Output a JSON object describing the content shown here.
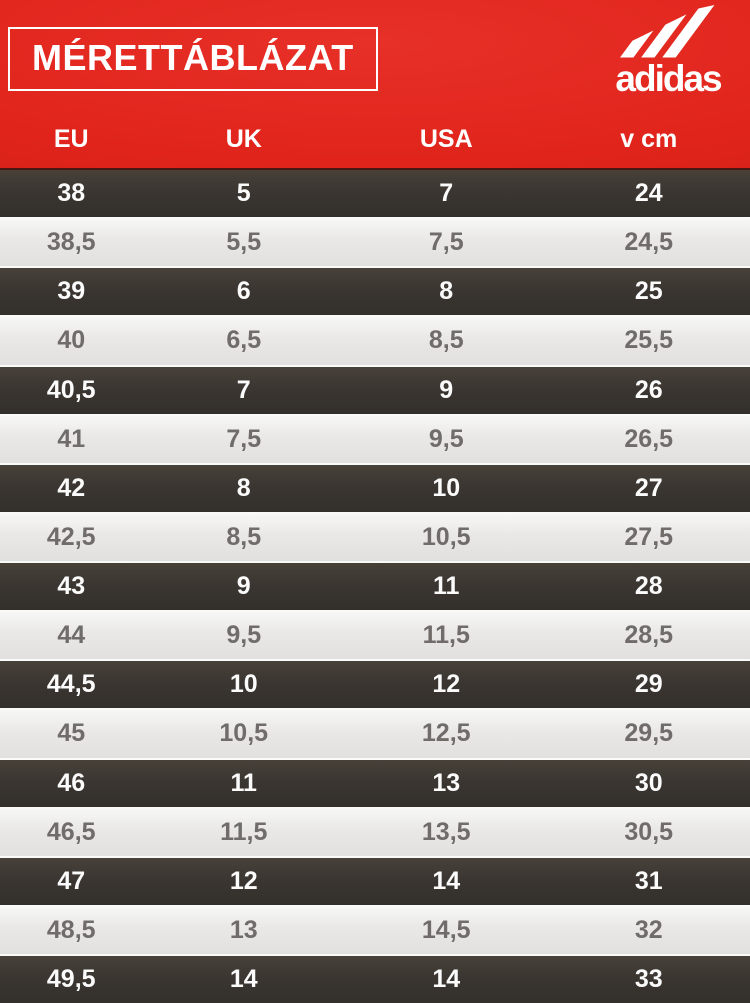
{
  "header": {
    "title": "MÉRETTÁBLÁZAT",
    "brand_wordmark": "adidas",
    "logo_icon": "adidas-three-stripes",
    "columns": [
      "EU",
      "UK",
      "USA",
      "v cm"
    ]
  },
  "colors": {
    "header_red": "#e0241b",
    "dark_row": "#3a3531",
    "light_row": "#e9e8e7",
    "dark_row_text": "#fbfbfb",
    "light_row_text": "#6f6c6a",
    "header_text": "#ffffff",
    "row_separator": "#fafaf9"
  },
  "chart_data": {
    "type": "table",
    "title": "MÉRETTÁBLÁZAT",
    "columns": [
      "EU",
      "UK",
      "USA",
      "v cm"
    ],
    "rows": [
      [
        "38",
        "5",
        "7",
        "24"
      ],
      [
        "38,5",
        "5,5",
        "7,5",
        "24,5"
      ],
      [
        "39",
        "6",
        "8",
        "25"
      ],
      [
        "40",
        "6,5",
        "8,5",
        "25,5"
      ],
      [
        "40,5",
        "7",
        "9",
        "26"
      ],
      [
        "41",
        "7,5",
        "9,5",
        "26,5"
      ],
      [
        "42",
        "8",
        "10",
        "27"
      ],
      [
        "42,5",
        "8,5",
        "10,5",
        "27,5"
      ],
      [
        "43",
        "9",
        "11",
        "28"
      ],
      [
        "44",
        "9,5",
        "11,5",
        "28,5"
      ],
      [
        "44,5",
        "10",
        "12",
        "29"
      ],
      [
        "45",
        "10,5",
        "12,5",
        "29,5"
      ],
      [
        "46",
        "11",
        "13",
        "30"
      ],
      [
        "46,5",
        "11,5",
        "13,5",
        "30,5"
      ],
      [
        "47",
        "12",
        "14",
        "31"
      ],
      [
        "48,5",
        "13",
        "14,5",
        "32"
      ],
      [
        "49,5",
        "14",
        "14",
        "33"
      ]
    ],
    "layout_hints": {
      "row_striping": "alternating dark (#3a3531, white bold text) and light (#e9e8e7, gray text), starting dark",
      "header_background": "#e0241b",
      "decimal_separator": ","
    }
  }
}
